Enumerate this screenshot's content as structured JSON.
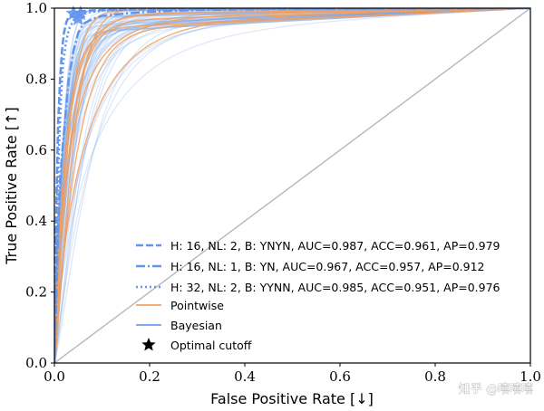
{
  "chart_data": {
    "type": "line",
    "xlabel": "False Positive Rate [↓]",
    "ylabel": "True Positive Rate [↑]",
    "xlim": [
      0,
      1
    ],
    "ylim": [
      0,
      1
    ],
    "xticks": [
      "0.0",
      "0.2",
      "0.4",
      "0.6",
      "0.8",
      "1.0"
    ],
    "yticks": [
      "0.0",
      "0.2",
      "0.4",
      "0.6",
      "0.8",
      "1.0"
    ],
    "grid": false,
    "legend_position": "lower-right",
    "diagonal": {
      "x": [
        0,
        1
      ],
      "y": [
        0,
        1
      ],
      "color": "#bbbbbb"
    },
    "series": [
      {
        "name": "H: 16, NL: 2, B: YNYN, AUC=0.987, ACC=0.961, AP=0.979",
        "style": "dashed",
        "color": "#6495ed",
        "x": [
          0,
          0.002,
          0.005,
          0.008,
          0.012,
          0.016,
          0.02,
          0.025,
          0.03,
          0.04,
          0.05,
          0.07,
          0.1,
          0.15,
          0.25,
          0.5,
          0.75,
          1.0
        ],
        "y": [
          0,
          0.25,
          0.5,
          0.68,
          0.8,
          0.88,
          0.93,
          0.96,
          0.975,
          0.985,
          0.99,
          0.993,
          0.995,
          0.997,
          0.998,
          0.999,
          1.0,
          1.0
        ]
      },
      {
        "name": "H: 16, NL: 1, B: YN, AUC=0.967, ACC=0.957, AP=0.912",
        "style": "dashdot",
        "color": "#6495ed",
        "x": [
          0,
          0.004,
          0.008,
          0.012,
          0.018,
          0.025,
          0.03,
          0.04,
          0.05,
          0.06,
          0.08,
          0.1,
          0.15,
          0.2,
          0.3,
          0.5,
          0.75,
          1.0
        ],
        "y": [
          0,
          0.2,
          0.38,
          0.52,
          0.62,
          0.72,
          0.8,
          0.88,
          0.93,
          0.955,
          0.97,
          0.978,
          0.985,
          0.99,
          0.995,
          0.998,
          0.999,
          1.0
        ]
      },
      {
        "name": "H: 32, NL: 2, B: YYNN, AUC=0.985, ACC=0.951, AP=0.976",
        "style": "dotted",
        "color": "#6495ed",
        "x": [
          0,
          0.003,
          0.006,
          0.01,
          0.014,
          0.018,
          0.024,
          0.03,
          0.04,
          0.05,
          0.07,
          0.1,
          0.15,
          0.25,
          0.5,
          0.75,
          1.0
        ],
        "y": [
          0,
          0.22,
          0.45,
          0.62,
          0.75,
          0.84,
          0.9,
          0.94,
          0.965,
          0.978,
          0.988,
          0.993,
          0.996,
          0.998,
          0.999,
          1.0,
          1.0
        ]
      }
    ],
    "background_curves": {
      "pointwise": {
        "label": "Pointwise",
        "color": "#f0a060"
      },
      "bayesian": {
        "label": "Bayesian",
        "color": "#6f9ee8"
      }
    },
    "optimal_cutoff": {
      "label": "Optimal cutoff",
      "points": [
        {
          "x": 0.04,
          "y": 0.985
        },
        {
          "x": 0.05,
          "y": 0.97
        },
        {
          "x": 0.055,
          "y": 0.985
        }
      ]
    }
  },
  "watermark": "知乎 @嘻嘻嘻"
}
